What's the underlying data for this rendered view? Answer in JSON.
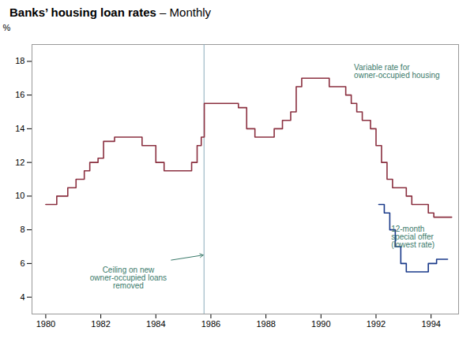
{
  "chart_data": {
    "type": "line",
    "line_style": "step",
    "title": "Banks’ housing loan rates",
    "subtitle": "– Monthly",
    "ylabel": "%",
    "xlim": [
      1979.5,
      1995.0
    ],
    "ylim": [
      3.0,
      19.0
    ],
    "xticks": [
      1980,
      1982,
      1984,
      1986,
      1988,
      1990,
      1992,
      1994
    ],
    "yticks": [
      4,
      6,
      8,
      10,
      12,
      14,
      16,
      18
    ],
    "grid": false,
    "vline": 1985.75,
    "series": [
      {
        "name": "Variable rate for\nowner-occupied housing",
        "color": "#8b3040",
        "x": [
          1980.0,
          1980.4,
          1980.8,
          1981.1,
          1981.4,
          1981.6,
          1981.9,
          1982.1,
          1982.5,
          1983.0,
          1983.5,
          1984.0,
          1984.3,
          1984.6,
          1985.0,
          1985.3,
          1985.5,
          1985.65,
          1985.75,
          1985.76,
          1986.3,
          1986.8,
          1987.0,
          1987.3,
          1987.6,
          1988.0,
          1988.3,
          1988.6,
          1988.9,
          1989.1,
          1989.3,
          1989.6,
          1990.0,
          1990.3,
          1990.6,
          1990.9,
          1991.1,
          1991.3,
          1991.5,
          1991.8,
          1992.0,
          1992.2,
          1992.4,
          1992.6,
          1992.9,
          1993.1,
          1993.3,
          1993.6,
          1993.9,
          1994.1,
          1994.4,
          1994.75
        ],
        "values": [
          9.5,
          10.0,
          10.5,
          11.0,
          11.5,
          12.0,
          12.25,
          13.25,
          13.5,
          13.5,
          13.0,
          12.0,
          11.5,
          11.5,
          11.5,
          12.0,
          13.0,
          13.5,
          13.5,
          15.5,
          15.5,
          15.5,
          15.25,
          14.0,
          13.5,
          13.5,
          14.0,
          14.5,
          15.0,
          16.5,
          17.0,
          17.0,
          17.0,
          16.5,
          16.5,
          16.0,
          15.5,
          15.0,
          14.5,
          14.0,
          13.0,
          12.0,
          11.0,
          10.5,
          10.5,
          10.0,
          9.5,
          9.5,
          9.0,
          8.75,
          8.75,
          8.75
        ]
      },
      {
        "name": "12-month\nspecial offer\n(lowest rate)",
        "color": "#1a3a8a",
        "x": [
          1992.1,
          1992.3,
          1992.5,
          1992.7,
          1992.9,
          1993.1,
          1993.4,
          1993.7,
          1993.9,
          1994.2,
          1994.6
        ],
        "values": [
          9.5,
          9.0,
          8.0,
          7.0,
          6.0,
          5.5,
          5.5,
          5.5,
          6.0,
          6.25,
          6.25
        ]
      }
    ],
    "annotations": [
      {
        "text": "Ceiling on new\nowner-occupied loans\nremoved",
        "x": 1983.0,
        "y": 5.8,
        "arrow": [
          1985.72,
          6.5
        ]
      },
      {
        "text": "Variable rate for\nowner-occupied housing",
        "x": 1991.2,
        "y": 17.8
      },
      {
        "text": "12-month\nspecial offer\n(lowest rate)",
        "x": 1992.55,
        "y": 8.2
      }
    ]
  }
}
